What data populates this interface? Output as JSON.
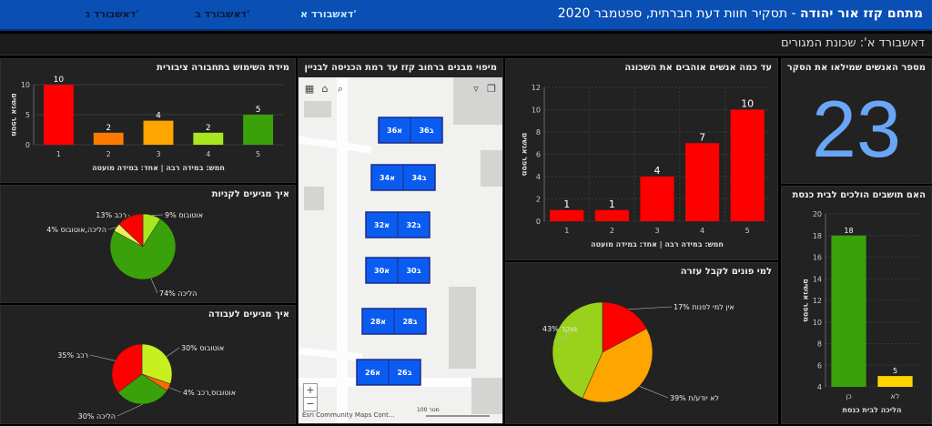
{
  "header": {
    "org": "מתחם קזז אור יהודה",
    "subtitle": " - תסקיר חוות דעת חברתית, ספטמבר 2020",
    "tabs": [
      "דאשבורד א'",
      "דאשבורד ב'",
      "דאשבורד ג'"
    ]
  },
  "subheader": "דאשבורד א': שכונת המגורים",
  "colors": {
    "red": "#ff0000",
    "orange": "#ff9900",
    "green": "#3aa10a",
    "lime": "#a8e61d",
    "yellow": "#ffd400",
    "blue": "#6aa6f7"
  },
  "respondents": {
    "title": "מספר האנשים שמילאו את הסקר",
    "value": "23"
  },
  "panels": {
    "usage_title": "מידת השימוש בתחבורה ציבורית",
    "neighborhood_title": "עד כמה אנשים אוהבים את השכונה",
    "map_title": "מיפוי מבנים ברחוב קזז עד רמת הכניסה לבניין",
    "shopping_title": "איך מגיעים לקניות",
    "work_title": "איך מגיעים לעבודה",
    "help_title": "למי פונים לקבל עזרה",
    "synagogue_title": "האם תושבים הולכים לבית כנסת"
  },
  "map": {
    "buildings": [
      "36א",
      "36ב",
      "34א",
      "34ב",
      "32א",
      "32ב",
      "30א",
      "30ב",
      "28א",
      "28ב",
      "26א",
      "26ב"
    ],
    "attribution": "Esri Community Maps Cont...",
    "scale": "100 מטר"
  },
  "chart_data": [
    {
      "id": "usage",
      "type": "bar",
      "title": "מידת השימוש בתחבורה ציבורית",
      "categories": [
        "1",
        "2",
        "3",
        "4",
        "5"
      ],
      "values": [
        10,
        2,
        4,
        2,
        5
      ],
      "colors": [
        "#ff0000",
        "#ff7a00",
        "#ffa500",
        "#a8e61d",
        "#3aa10a"
      ],
      "ylabel": "מספר אנשים",
      "xlabel": "חמש: במידה רבה | אחד: במידה מועטה",
      "ylim": [
        0,
        10
      ],
      "yticks": [
        0,
        5,
        10
      ]
    },
    {
      "id": "neighborhood",
      "type": "bar",
      "title": "עד כמה אנשים אוהבים את השכונה",
      "categories": [
        "1",
        "2",
        "3",
        "4",
        "5"
      ],
      "values": [
        1,
        1,
        4,
        7,
        10
      ],
      "colors": [
        "#ff0000",
        "#ff0000",
        "#ff0000",
        "#ff0000",
        "#ff0000"
      ],
      "ylabel": "מספר אנשים",
      "xlabel": "חמש: במידה רבה | אחד: במידה מועטה",
      "ylim": [
        0,
        12
      ],
      "yticks": [
        0,
        2,
        4,
        6,
        8,
        10,
        12
      ]
    },
    {
      "id": "synagogue",
      "type": "bar",
      "title": "האם תושבים הולכים לבית כנסת",
      "categories": [
        "כן",
        "לא"
      ],
      "values": [
        18,
        5
      ],
      "colors": [
        "#3aa10a",
        "#ffd400"
      ],
      "ylabel": "מספר אנשים",
      "xlabel": "הליכה לבית כנסת",
      "ylim": [
        4,
        20
      ],
      "yticks": [
        4,
        6,
        8,
        10,
        12,
        14,
        16,
        18,
        20
      ]
    },
    {
      "id": "shopping",
      "type": "pie",
      "title": "איך מגיעים לקניות",
      "slices": [
        {
          "label": "אוטובוס",
          "value": 9,
          "text": "אוטובוס 9%",
          "color": "#a8e61d"
        },
        {
          "label": "הליכה",
          "value": 74,
          "text": "הליכה 74%",
          "color": "#3aa10a"
        },
        {
          "label": "הליכה,אוטובוס",
          "value": 4,
          "text": "הליכה,אוטובוס 4%",
          "color": "#e8f060"
        },
        {
          "label": "רכב",
          "value": 13,
          "text": "רכב 13%",
          "color": "#ff0000"
        }
      ]
    },
    {
      "id": "work",
      "type": "pie",
      "title": "איך מגיעים לעבודה",
      "slices": [
        {
          "label": "אוטובוס",
          "value": 30,
          "text": "אוטובוס 30%",
          "color": "#c8f01e"
        },
        {
          "label": "אוטובוס,רכב",
          "value": 4,
          "text": "אוטובוס,רכב 4%",
          "color": "#ff6a00"
        },
        {
          "label": "הליכה",
          "value": 30,
          "text": "הליכה 30%",
          "color": "#3aa10a"
        },
        {
          "label": "רכב",
          "value": 35,
          "text": "רכב 35%",
          "color": "#ff0000"
        }
      ]
    },
    {
      "id": "help",
      "type": "pie",
      "title": "למי פונים לקבל עזרה",
      "slices": [
        {
          "label": "אין למי לפנות",
          "value": 17,
          "text": "אין למי לפנות 17%",
          "color": "#ff0000"
        },
        {
          "label": "לא יודע/ת",
          "value": 39,
          "text": "לא יודע/ת 39%",
          "color": "#ffa500"
        },
        {
          "label": "מוקד",
          "value": 43,
          "text": "מוקד 43%",
          "color": "#9ad11a"
        }
      ]
    }
  ]
}
